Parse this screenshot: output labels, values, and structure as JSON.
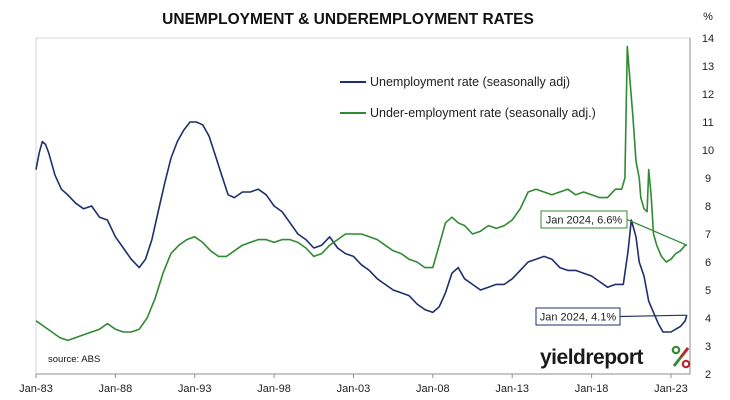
{
  "chart_data": {
    "type": "line",
    "title": "UNEMPLOYMENT & UNDEREMPLOYMENT RATES",
    "y_unit": "%",
    "xlabel": "",
    "ylabel": "",
    "xlim": [
      1983.0,
      2024.2
    ],
    "ylim": [
      2,
      14
    ],
    "grid": false,
    "y_axis_side": "right",
    "legend_position": "top-center",
    "x_ticks": [
      "Jan-83",
      "Jan-88",
      "Jan-93",
      "Jan-98",
      "Jan-03",
      "Jan-08",
      "Jan-13",
      "Jan-18",
      "Jan-23"
    ],
    "y_ticks": [
      2,
      3,
      4,
      5,
      6,
      7,
      8,
      9,
      10,
      11,
      12,
      13,
      14
    ],
    "series": [
      {
        "name": "Unemployment rate (seasonally adj)",
        "color": "#1f2f6b",
        "points": [
          [
            1983.0,
            9.3
          ],
          [
            1983.2,
            9.9
          ],
          [
            1983.4,
            10.3
          ],
          [
            1983.6,
            10.2
          ],
          [
            1983.8,
            9.9
          ],
          [
            1984.2,
            9.1
          ],
          [
            1984.6,
            8.6
          ],
          [
            1985.0,
            8.4
          ],
          [
            1985.5,
            8.1
          ],
          [
            1986.0,
            7.9
          ],
          [
            1986.5,
            8.0
          ],
          [
            1987.0,
            7.6
          ],
          [
            1987.5,
            7.5
          ],
          [
            1988.0,
            6.9
          ],
          [
            1988.5,
            6.5
          ],
          [
            1989.0,
            6.1
          ],
          [
            1989.5,
            5.8
          ],
          [
            1989.9,
            6.1
          ],
          [
            1990.3,
            6.8
          ],
          [
            1990.7,
            7.8
          ],
          [
            1991.1,
            8.8
          ],
          [
            1991.5,
            9.7
          ],
          [
            1991.9,
            10.3
          ],
          [
            1992.3,
            10.7
          ],
          [
            1992.7,
            11.0
          ],
          [
            1993.1,
            11.0
          ],
          [
            1993.5,
            10.9
          ],
          [
            1993.9,
            10.5
          ],
          [
            1994.3,
            9.8
          ],
          [
            1994.7,
            9.1
          ],
          [
            1995.1,
            8.4
          ],
          [
            1995.5,
            8.3
          ],
          [
            1996.0,
            8.5
          ],
          [
            1996.5,
            8.5
          ],
          [
            1997.0,
            8.6
          ],
          [
            1997.5,
            8.4
          ],
          [
            1998.0,
            8.0
          ],
          [
            1998.5,
            7.8
          ],
          [
            1999.0,
            7.4
          ],
          [
            1999.5,
            7.0
          ],
          [
            2000.0,
            6.8
          ],
          [
            2000.5,
            6.5
          ],
          [
            2001.0,
            6.6
          ],
          [
            2001.5,
            6.9
          ],
          [
            2002.0,
            6.5
          ],
          [
            2002.5,
            6.3
          ],
          [
            2003.0,
            6.2
          ],
          [
            2003.5,
            5.9
          ],
          [
            2004.0,
            5.7
          ],
          [
            2004.5,
            5.4
          ],
          [
            2005.0,
            5.2
          ],
          [
            2005.5,
            5.0
          ],
          [
            2006.0,
            4.9
          ],
          [
            2006.5,
            4.8
          ],
          [
            2007.0,
            4.5
          ],
          [
            2007.5,
            4.3
          ],
          [
            2008.0,
            4.2
          ],
          [
            2008.4,
            4.4
          ],
          [
            2008.8,
            4.9
          ],
          [
            2009.2,
            5.6
          ],
          [
            2009.6,
            5.8
          ],
          [
            2010.0,
            5.4
          ],
          [
            2010.5,
            5.2
          ],
          [
            2011.0,
            5.0
          ],
          [
            2011.5,
            5.1
          ],
          [
            2012.0,
            5.2
          ],
          [
            2012.5,
            5.2
          ],
          [
            2013.0,
            5.4
          ],
          [
            2013.5,
            5.7
          ],
          [
            2014.0,
            6.0
          ],
          [
            2014.5,
            6.1
          ],
          [
            2015.0,
            6.2
          ],
          [
            2015.5,
            6.1
          ],
          [
            2016.0,
            5.8
          ],
          [
            2016.5,
            5.7
          ],
          [
            2017.0,
            5.7
          ],
          [
            2017.5,
            5.6
          ],
          [
            2018.0,
            5.5
          ],
          [
            2018.5,
            5.3
          ],
          [
            2019.0,
            5.1
          ],
          [
            2019.5,
            5.2
          ],
          [
            2020.0,
            5.2
          ],
          [
            2020.3,
            6.4
          ],
          [
            2020.5,
            7.5
          ],
          [
            2020.8,
            6.9
          ],
          [
            2021.0,
            6.0
          ],
          [
            2021.3,
            5.5
          ],
          [
            2021.6,
            4.6
          ],
          [
            2021.9,
            4.2
          ],
          [
            2022.2,
            3.8
          ],
          [
            2022.5,
            3.5
          ],
          [
            2022.8,
            3.5
          ],
          [
            2023.0,
            3.5
          ],
          [
            2023.3,
            3.6
          ],
          [
            2023.6,
            3.7
          ],
          [
            2023.9,
            3.9
          ],
          [
            2024.0,
            4.1
          ]
        ]
      },
      {
        "name": "Under-employment rate (seasonally adj.)",
        "color": "#2e8b32",
        "points": [
          [
            1983.0,
            3.9
          ],
          [
            1983.5,
            3.7
          ],
          [
            1984.0,
            3.5
          ],
          [
            1984.5,
            3.3
          ],
          [
            1985.0,
            3.2
          ],
          [
            1985.5,
            3.3
          ],
          [
            1986.0,
            3.4
          ],
          [
            1986.5,
            3.5
          ],
          [
            1987.0,
            3.6
          ],
          [
            1987.5,
            3.8
          ],
          [
            1988.0,
            3.6
          ],
          [
            1988.5,
            3.5
          ],
          [
            1989.0,
            3.5
          ],
          [
            1989.5,
            3.6
          ],
          [
            1990.0,
            4.0
          ],
          [
            1990.5,
            4.7
          ],
          [
            1991.0,
            5.6
          ],
          [
            1991.5,
            6.3
          ],
          [
            1992.0,
            6.6
          ],
          [
            1992.5,
            6.8
          ],
          [
            1993.0,
            6.9
          ],
          [
            1993.5,
            6.7
          ],
          [
            1994.0,
            6.4
          ],
          [
            1994.5,
            6.2
          ],
          [
            1995.0,
            6.2
          ],
          [
            1995.5,
            6.4
          ],
          [
            1996.0,
            6.6
          ],
          [
            1996.5,
            6.7
          ],
          [
            1997.0,
            6.8
          ],
          [
            1997.5,
            6.8
          ],
          [
            1998.0,
            6.7
          ],
          [
            1998.5,
            6.8
          ],
          [
            1999.0,
            6.8
          ],
          [
            1999.5,
            6.7
          ],
          [
            2000.0,
            6.5
          ],
          [
            2000.5,
            6.2
          ],
          [
            2001.0,
            6.3
          ],
          [
            2001.5,
            6.6
          ],
          [
            2002.0,
            6.8
          ],
          [
            2002.5,
            7.0
          ],
          [
            2003.0,
            7.0
          ],
          [
            2003.5,
            7.0
          ],
          [
            2004.0,
            6.9
          ],
          [
            2004.5,
            6.8
          ],
          [
            2005.0,
            6.6
          ],
          [
            2005.5,
            6.4
          ],
          [
            2006.0,
            6.3
          ],
          [
            2006.5,
            6.1
          ],
          [
            2007.0,
            6.0
          ],
          [
            2007.5,
            5.8
          ],
          [
            2008.0,
            5.8
          ],
          [
            2008.4,
            6.6
          ],
          [
            2008.8,
            7.4
          ],
          [
            2009.2,
            7.6
          ],
          [
            2009.6,
            7.4
          ],
          [
            2010.0,
            7.3
          ],
          [
            2010.5,
            7.0
          ],
          [
            2011.0,
            7.1
          ],
          [
            2011.5,
            7.3
          ],
          [
            2012.0,
            7.2
          ],
          [
            2012.5,
            7.3
          ],
          [
            2013.0,
            7.5
          ],
          [
            2013.5,
            7.9
          ],
          [
            2014.0,
            8.5
          ],
          [
            2014.5,
            8.6
          ],
          [
            2015.0,
            8.5
          ],
          [
            2015.5,
            8.4
          ],
          [
            2016.0,
            8.5
          ],
          [
            2016.5,
            8.6
          ],
          [
            2017.0,
            8.4
          ],
          [
            2017.5,
            8.5
          ],
          [
            2018.0,
            8.4
          ],
          [
            2018.5,
            8.3
          ],
          [
            2019.0,
            8.3
          ],
          [
            2019.5,
            8.6
          ],
          [
            2019.9,
            8.6
          ],
          [
            2020.1,
            9.0
          ],
          [
            2020.25,
            13.7
          ],
          [
            2020.4,
            12.6
          ],
          [
            2020.6,
            11.2
          ],
          [
            2020.8,
            9.6
          ],
          [
            2021.0,
            9.0
          ],
          [
            2021.1,
            8.3
          ],
          [
            2021.3,
            7.9
          ],
          [
            2021.5,
            7.8
          ],
          [
            2021.6,
            9.3
          ],
          [
            2021.75,
            8.4
          ],
          [
            2021.9,
            7.0
          ],
          [
            2022.1,
            6.6
          ],
          [
            2022.4,
            6.2
          ],
          [
            2022.7,
            6.0
          ],
          [
            2023.0,
            6.1
          ],
          [
            2023.3,
            6.3
          ],
          [
            2023.6,
            6.4
          ],
          [
            2023.9,
            6.6
          ],
          [
            2024.0,
            6.6
          ]
        ]
      }
    ],
    "annotations": [
      {
        "text": "Jan 2024, 6.6%",
        "series": 1,
        "x": 2024.0,
        "y": 6.6
      },
      {
        "text": "Jan 2024, 4.1%",
        "series": 0,
        "x": 2024.0,
        "y": 4.1
      }
    ],
    "source": "source: ABS",
    "brand": {
      "text": "yieldreport",
      "symbol": "%",
      "symbol_colors": [
        "#2e8b32",
        "#c0272d"
      ]
    }
  }
}
